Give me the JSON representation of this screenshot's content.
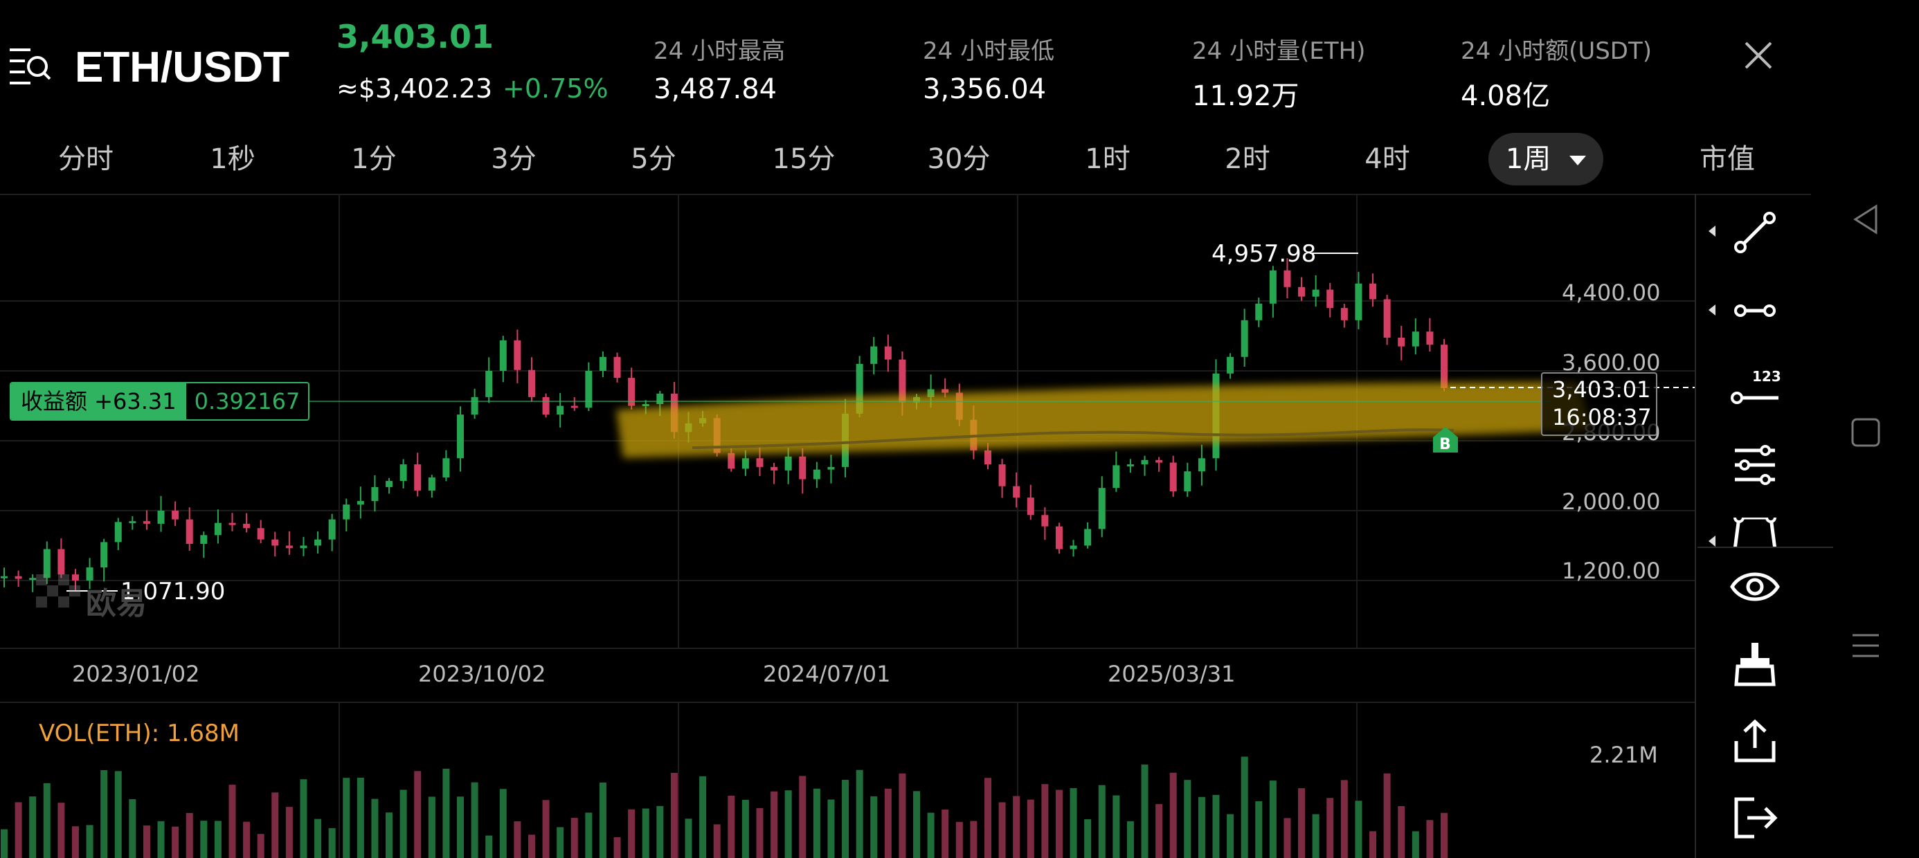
{
  "header": {
    "menu_icon": "menu-search-icon",
    "pair": "ETH/USDT",
    "last_price": "3,403.01",
    "usd_price": "≈$3,402.23",
    "change": "+0.75%",
    "stats": [
      {
        "label": "24 小时最高",
        "value": "3,487.84"
      },
      {
        "label": "24 小时最低",
        "value": "3,356.04"
      },
      {
        "label": "24 小时量(ETH)",
        "value": "11.92万"
      },
      {
        "label": "24 小时额(USDT)",
        "value": "4.08亿"
      }
    ],
    "close_icon": "close-icon"
  },
  "tabs": [
    "分时",
    "1秒",
    "1分",
    "3分",
    "5分",
    "15分",
    "30分",
    "1时",
    "2时",
    "4时",
    "1周",
    "市值"
  ],
  "active_tab": "1周",
  "chart": {
    "y_ticks": [
      "4,400.00",
      "3,600.00",
      "2,800.00",
      "2,000.00",
      "1,200.00"
    ],
    "x_ticks": [
      "2023/01/02",
      "2023/10/02",
      "2024/07/01",
      "2025/03/31"
    ],
    "high_label": "4,957.98",
    "low_label": "1,071.90",
    "current_price": "3,403.01",
    "countdown": "16:08:37",
    "pnl_label": "收益额 +63.31",
    "pnl_qty": "0.392167",
    "buy_marker": "B",
    "watermark": "欧易",
    "vol_label": "VOL(ETH): 1.68M",
    "vol_max": "2.21M"
  },
  "chart_data": {
    "type": "candlestick",
    "interval": "1周",
    "x_ticks": [
      "2023/01/02",
      "2023/10/02",
      "2024/07/01",
      "2025/03/31"
    ],
    "ylim": [
      1200,
      4400
    ],
    "y_ticks": [
      4400,
      3600,
      2800,
      2000,
      1200
    ],
    "period_high": 4957.98,
    "period_low": 1071.9,
    "current": 3403.01,
    "close_path": [
      1250,
      1220,
      1230,
      1560,
      1270,
      1200,
      1350,
      1640,
      1870,
      1880,
      1850,
      2000,
      1900,
      1620,
      1720,
      1860,
      1850,
      1800,
      1670,
      1600,
      1570,
      1600,
      1670,
      1900,
      2070,
      2110,
      2270,
      2340,
      2530,
      2230,
      2380,
      2600,
      3100,
      3300,
      3600,
      3950,
      3610,
      3300,
      3100,
      3200,
      3180,
      3600,
      3760,
      3520,
      3200,
      3220,
      3340,
      2900,
      3000,
      3060,
      2660,
      2480,
      2600,
      2500,
      2460,
      2620,
      2360,
      2470,
      2500,
      3110,
      3680,
      3880,
      3730,
      3240,
      3300,
      3390,
      3350,
      3040,
      2690,
      2530,
      2280,
      2150,
      1950,
      1820,
      1560,
      1600,
      1790,
      2260,
      2520,
      2530,
      2580,
      2550,
      2220,
      2450,
      2600,
      3570,
      3760,
      4180,
      4370,
      4750,
      4560,
      4450,
      4530,
      4320,
      4180,
      4600,
      4420,
      3980,
      3880,
      4050,
      3900,
      3403
    ],
    "volume_units": "ETH",
    "volume_current": "1.68M",
    "volume_max_tick": "2.21M"
  },
  "toolbar_icons": [
    "trend-line-icon",
    "ray-line-icon",
    "price-line-icon",
    "parallel-lines-icon",
    "path-tool-icon",
    "eye-icon",
    "eraser-icon",
    "share-icon",
    "exit-fullscreen-icon"
  ],
  "system_nav": [
    "back-icon",
    "home-icon",
    "recents-icon"
  ],
  "colors": {
    "up": "#26a650",
    "down": "#d63d62",
    "accent_green": "#2fb361",
    "highlight": "#b8920a"
  }
}
